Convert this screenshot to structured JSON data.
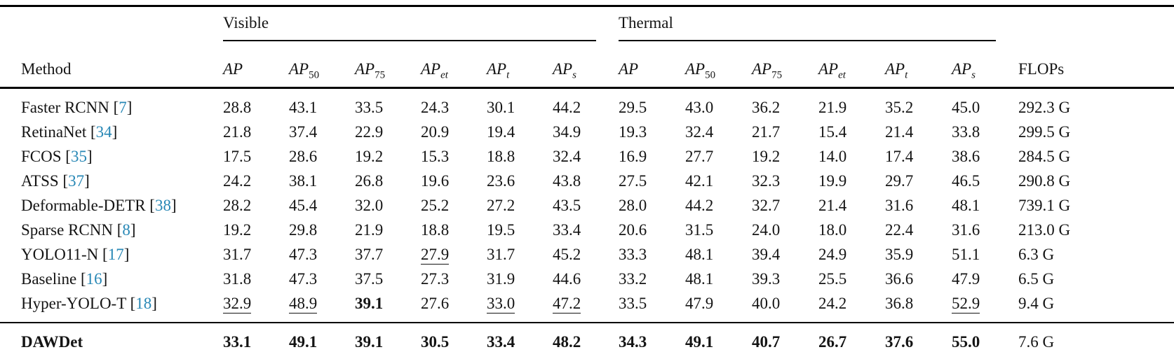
{
  "table": {
    "method_header": "Method",
    "flops_header": "FLOPs",
    "accent_color": "#2787b5",
    "groups": [
      {
        "label": "Visible"
      },
      {
        "label": "Thermal"
      }
    ],
    "subcolumns": [
      {
        "base": "AP",
        "sub": ""
      },
      {
        "base": "AP",
        "sub": "50"
      },
      {
        "base": "AP",
        "sub": "75"
      },
      {
        "base": "AP",
        "sub": "et"
      },
      {
        "base": "AP",
        "sub": "t"
      },
      {
        "base": "AP",
        "sub": "s"
      }
    ],
    "rows": [
      {
        "method": "Faster RCNN",
        "cite": "7",
        "cells": [
          "28.8",
          "43.1",
          "33.5",
          "24.3",
          "30.1",
          "44.2",
          "29.5",
          "43.0",
          "36.2",
          "21.9",
          "35.2",
          "45.0"
        ],
        "styles": [
          "",
          "",
          "",
          "",
          "",
          "",
          "",
          "",
          "",
          "",
          "",
          ""
        ],
        "flops": "292.3 G"
      },
      {
        "method": "RetinaNet",
        "cite": "34",
        "cells": [
          "21.8",
          "37.4",
          "22.9",
          "20.9",
          "19.4",
          "34.9",
          "19.3",
          "32.4",
          "21.7",
          "15.4",
          "21.4",
          "33.8"
        ],
        "styles": [
          "",
          "",
          "",
          "",
          "",
          "",
          "",
          "",
          "",
          "",
          "",
          ""
        ],
        "flops": "299.5 G"
      },
      {
        "method": "FCOS",
        "cite": "35",
        "cells": [
          "17.5",
          "28.6",
          "19.2",
          "15.3",
          "18.8",
          "32.4",
          "16.9",
          "27.7",
          "19.2",
          "14.0",
          "17.4",
          "38.6"
        ],
        "styles": [
          "",
          "",
          "",
          "",
          "",
          "",
          "",
          "",
          "",
          "",
          "",
          ""
        ],
        "flops": "284.5 G"
      },
      {
        "method": "ATSS",
        "cite": "37",
        "cells": [
          "24.2",
          "38.1",
          "26.8",
          "19.6",
          "23.6",
          "43.8",
          "27.5",
          "42.1",
          "32.3",
          "19.9",
          "29.7",
          "46.5"
        ],
        "styles": [
          "",
          "",
          "",
          "",
          "",
          "",
          "",
          "",
          "",
          "",
          "",
          ""
        ],
        "flops": "290.8 G"
      },
      {
        "method": "Deformable-DETR",
        "cite": "38",
        "cells": [
          "28.2",
          "45.4",
          "32.0",
          "25.2",
          "27.2",
          "43.5",
          "28.0",
          "44.2",
          "32.7",
          "21.4",
          "31.6",
          "48.1"
        ],
        "styles": [
          "",
          "",
          "",
          "",
          "",
          "",
          "",
          "",
          "",
          "",
          "",
          ""
        ],
        "flops": "739.1 G"
      },
      {
        "method": "Sparse RCNN",
        "cite": "8",
        "cells": [
          "19.2",
          "29.8",
          "21.9",
          "18.8",
          "19.5",
          "33.4",
          "20.6",
          "31.5",
          "24.0",
          "18.0",
          "22.4",
          "31.6"
        ],
        "styles": [
          "",
          "",
          "",
          "",
          "",
          "",
          "",
          "",
          "",
          "",
          "",
          ""
        ],
        "flops": "213.0 G"
      },
      {
        "method": "YOLO11-N",
        "cite": "17",
        "cells": [
          "31.7",
          "47.3",
          "37.7",
          "27.9",
          "31.7",
          "45.2",
          "33.3",
          "48.1",
          "39.4",
          "24.9",
          "35.9",
          "51.1"
        ],
        "styles": [
          "",
          "",
          "",
          "u",
          "",
          "",
          "",
          "",
          "",
          "",
          "",
          ""
        ],
        "flops": "6.3 G"
      },
      {
        "method": "Baseline",
        "cite": "16",
        "cells": [
          "31.8",
          "47.3",
          "37.5",
          "27.3",
          "31.9",
          "44.6",
          "33.2",
          "48.1",
          "39.3",
          "25.5",
          "36.6",
          "47.9"
        ],
        "styles": [
          "",
          "",
          "",
          "",
          "",
          "",
          "",
          "",
          "",
          "",
          "",
          ""
        ],
        "flops": "6.5 G"
      },
      {
        "method": "Hyper-YOLO-T",
        "cite": "18",
        "cells": [
          "32.9",
          "48.9",
          "39.1",
          "27.6",
          "33.0",
          "47.2",
          "33.5",
          "47.9",
          "40.0",
          "24.2",
          "36.8",
          "52.9"
        ],
        "styles": [
          "u",
          "u",
          "b",
          "",
          "u",
          "u",
          "",
          "",
          "",
          "",
          "",
          "u"
        ],
        "flops": "9.4 G"
      },
      {
        "method": "DAWDet",
        "cite": "",
        "bold": true,
        "highlight": true,
        "cells": [
          "33.1",
          "49.1",
          "39.1",
          "30.5",
          "33.4",
          "48.2",
          "34.3",
          "49.1",
          "40.7",
          "26.7",
          "37.6",
          "55.0"
        ],
        "styles": [
          "",
          "",
          "",
          "",
          "",
          "",
          "",
          "",
          "",
          "",
          "",
          ""
        ],
        "flops": "7.6 G"
      }
    ]
  }
}
